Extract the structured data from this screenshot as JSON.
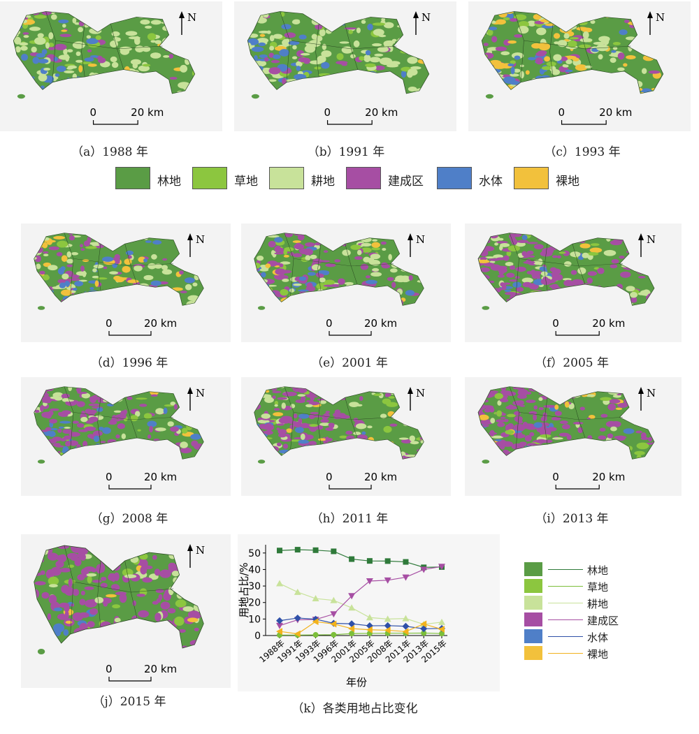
{
  "colors": {
    "forest": "#5a9c45",
    "grass": "#8cc63f",
    "farmland": "#c8e29a",
    "built": "#a64ea3",
    "water": "#4f7fc8",
    "bare": "#f2c13c"
  },
  "map_panels": [
    {
      "caption": "（a）1988 年",
      "scale_zero": "0",
      "scale_label": "20 km",
      "north": "N"
    },
    {
      "caption": "（b）1991 年",
      "scale_zero": "0",
      "scale_label": "20 km",
      "north": "N"
    },
    {
      "caption": "（c）1993 年",
      "scale_zero": "0",
      "scale_label": "20 km",
      "north": "N"
    },
    {
      "caption": "（d）1996 年",
      "scale_zero": "0",
      "scale_label": "20 km",
      "north": "N"
    },
    {
      "caption": "（e）2001 年",
      "scale_zero": "0",
      "scale_label": "20 km",
      "north": "N"
    },
    {
      "caption": "（f）2005 年",
      "scale_zero": "0",
      "scale_label": "20 km",
      "north": "N"
    },
    {
      "caption": "（g）2008 年",
      "scale_zero": "0",
      "scale_label": "20 km",
      "north": "N"
    },
    {
      "caption": "（h）2011 年",
      "scale_zero": "0",
      "scale_label": "20 km",
      "north": "N"
    },
    {
      "caption": "（i）2013 年",
      "scale_zero": "0",
      "scale_label": "20 km",
      "north": "N"
    },
    {
      "caption": "（j）2015 年",
      "scale_zero": "0",
      "scale_label": "20 km",
      "north": "N"
    }
  ],
  "top_legend": [
    {
      "label": "林地",
      "color": "#5a9c45"
    },
    {
      "label": "草地",
      "color": "#8cc63f"
    },
    {
      "label": "耕地",
      "color": "#c8e29a"
    },
    {
      "label": "建成区",
      "color": "#a64ea3"
    },
    {
      "label": "水体",
      "color": "#4f7fc8"
    },
    {
      "label": "裸地",
      "color": "#f2c13c"
    }
  ],
  "chart_caption": "（k）各类用地占比变化",
  "chart_data": {
    "type": "line",
    "xlabel": "年份",
    "ylabel": "用地占比/%",
    "categories": [
      "1988年",
      "1991年",
      "1993年",
      "1996年",
      "2001年",
      "2005年",
      "2008年",
      "2011年",
      "2013年",
      "2015年"
    ],
    "ylim": [
      0,
      55
    ],
    "yticks": [
      0,
      10,
      20,
      30,
      40,
      50
    ],
    "legend_position": "right",
    "series": [
      {
        "name": "林地",
        "color": "#2f7a3a",
        "marker": "square",
        "values": [
          51.5,
          52,
          51.7,
          51,
          46.3,
          45.2,
          45.1,
          44.6,
          41.3,
          41.5
        ]
      },
      {
        "name": "草地",
        "color": "#7cbf3a",
        "marker": "circle",
        "values": [
          0.3,
          0.3,
          0.4,
          0.5,
          1.2,
          1.3,
          1.4,
          1.4,
          1.5,
          1.2
        ]
      },
      {
        "name": "耕地",
        "color": "#c8e29a",
        "marker": "triangle-up",
        "values": [
          31.5,
          26.3,
          22.4,
          21.3,
          16.8,
          10.9,
          10,
          10.3,
          6.8,
          8.1
        ]
      },
      {
        "name": "建成区",
        "color": "#a64ea3",
        "marker": "triangle-down",
        "values": [
          6,
          9.5,
          9.7,
          13,
          24,
          33,
          33.5,
          35.3,
          40,
          41.8
        ]
      },
      {
        "name": "水体",
        "color": "#2f50a8",
        "marker": "diamond",
        "values": [
          9,
          10.6,
          9.9,
          7.4,
          7.1,
          5.9,
          6,
          5.6,
          4.1,
          4.3
        ]
      },
      {
        "name": "裸地",
        "color": "#f2b21c",
        "marker": "triangle-left",
        "values": [
          2.5,
          1,
          8.4,
          7,
          4.2,
          3.5,
          3.2,
          2.4,
          7,
          3.8
        ]
      }
    ]
  }
}
